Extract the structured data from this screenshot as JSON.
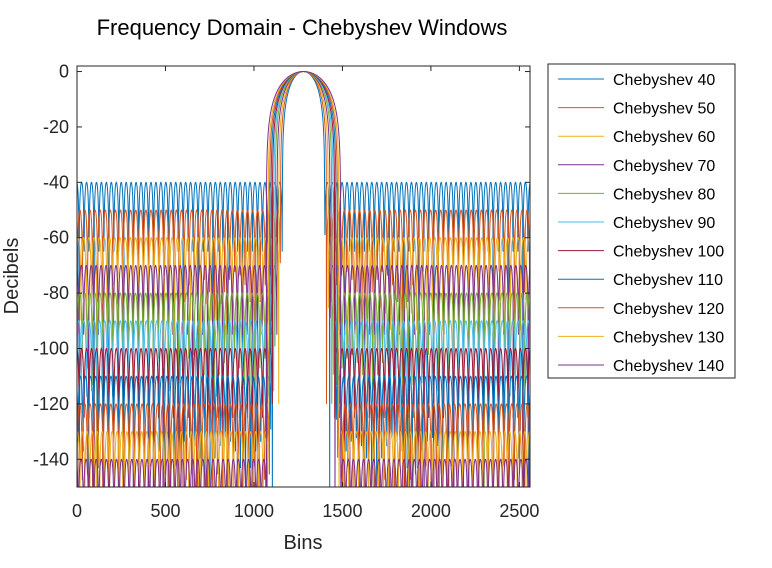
{
  "chart_data": {
    "type": "line",
    "title": "Frequency Domain - Chebyshev Windows",
    "xlabel": "Bins",
    "ylabel": "Decibels",
    "xlim": [
      0,
      2560
    ],
    "ylim": [
      -150,
      2
    ],
    "xticks": [
      0,
      500,
      1000,
      1500,
      2000,
      2500
    ],
    "yticks": [
      0,
      -20,
      -40,
      -60,
      -80,
      -100,
      -120,
      -140
    ],
    "grid": false,
    "legend_position": "outside-right",
    "main_lobe_center": 1280,
    "series": [
      {
        "name": "Chebyshev 40",
        "sidelobe_db": -40,
        "main_lobe_halfwidth": 120,
        "color": "#0072BD"
      },
      {
        "name": "Chebyshev 50",
        "sidelobe_db": -50,
        "main_lobe_halfwidth": 130,
        "color": "#D95319"
      },
      {
        "name": "Chebyshev 60",
        "sidelobe_db": -60,
        "main_lobe_halfwidth": 140,
        "color": "#EDB120"
      },
      {
        "name": "Chebyshev 70",
        "sidelobe_db": -70,
        "main_lobe_halfwidth": 150,
        "color": "#7E2F8E"
      },
      {
        "name": "Chebyshev 80",
        "sidelobe_db": -80,
        "main_lobe_halfwidth": 160,
        "color": "#77AC30"
      },
      {
        "name": "Chebyshev 90",
        "sidelobe_db": -90,
        "main_lobe_halfwidth": 168,
        "color": "#4DBEEE"
      },
      {
        "name": "Chebyshev 100",
        "sidelobe_db": -100,
        "main_lobe_halfwidth": 176,
        "color": "#A2142F"
      },
      {
        "name": "Chebyshev 110",
        "sidelobe_db": -110,
        "main_lobe_halfwidth": 184,
        "color": "#0072BD"
      },
      {
        "name": "Chebyshev 120",
        "sidelobe_db": -120,
        "main_lobe_halfwidth": 192,
        "color": "#D95319"
      },
      {
        "name": "Chebyshev 130",
        "sidelobe_db": -130,
        "main_lobe_halfwidth": 200,
        "color": "#EDB120"
      },
      {
        "name": "Chebyshev 140",
        "sidelobe_db": -140,
        "main_lobe_halfwidth": 210,
        "color": "#7E2F8E"
      }
    ]
  }
}
